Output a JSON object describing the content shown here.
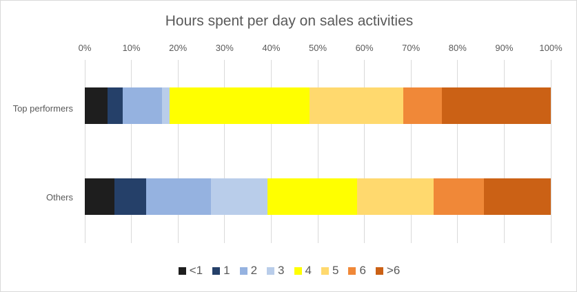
{
  "chart_data": {
    "type": "bar",
    "orientation": "horizontal",
    "stacked": "100%",
    "title": "Hours spent per day on sales activities",
    "xlabel": "",
    "ylabel": "",
    "xlim": [
      0,
      100
    ],
    "x_tick_labels": [
      "0%",
      "10%",
      "20%",
      "30%",
      "40%",
      "50%",
      "60%",
      "70%",
      "80%",
      "90%",
      "100%"
    ],
    "grid": true,
    "legend_position": "bottom",
    "categories": [
      "Top performers",
      "Others"
    ],
    "series": [
      {
        "name": "<1",
        "color": "#1e1e1e",
        "values": [
          4.9,
          6.3
        ]
      },
      {
        "name": "1",
        "color": "#254069",
        "values": [
          3.3,
          6.8
        ]
      },
      {
        "name": "2",
        "color": "#95b2e0",
        "values": [
          8.4,
          14.0
        ]
      },
      {
        "name": "3",
        "color": "#b9cdea",
        "values": [
          1.6,
          12.1
        ]
      },
      {
        "name": "4",
        "color": "#ffff00",
        "values": [
          30.0,
          19.2
        ]
      },
      {
        "name": "5",
        "color": "#ffd96e",
        "values": [
          20.1,
          16.4
        ]
      },
      {
        "name": "6",
        "color": "#f08838",
        "values": [
          8.3,
          10.8
        ]
      },
      {
        "name": ">6",
        "color": "#cb6115",
        "values": [
          23.4,
          14.3
        ]
      }
    ]
  }
}
